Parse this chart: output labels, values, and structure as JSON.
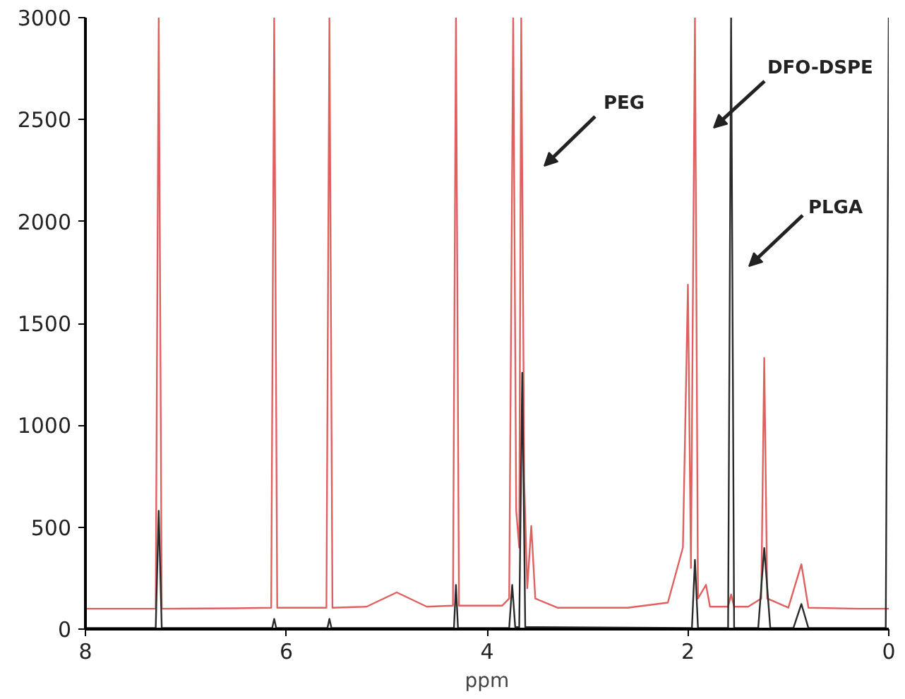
{
  "chart_data": {
    "type": "line",
    "xlabel": "ppm",
    "xlim": [
      8,
      0
    ],
    "xticks": [
      8,
      6,
      4,
      2,
      0
    ],
    "ylim": [
      0,
      3000
    ],
    "yticks": [
      0,
      500,
      1000,
      1500,
      2000,
      2500,
      3000
    ],
    "grid": false,
    "marker": "none",
    "line_style": "solid",
    "series": [
      {
        "color": "#e06060",
        "x": [
          8.0,
          7.3,
          7.27,
          7.24,
          6.5,
          6.15,
          6.12,
          6.09,
          5.6,
          5.57,
          5.54,
          5.2,
          4.9,
          4.6,
          4.34,
          4.31,
          4.28,
          3.85,
          3.78,
          3.74,
          3.71,
          3.68,
          3.66,
          3.63,
          3.6,
          3.56,
          3.52,
          3.3,
          2.6,
          2.2,
          2.05,
          2.0,
          1.97,
          1.93,
          1.9,
          1.82,
          1.78,
          1.6,
          1.57,
          1.54,
          1.4,
          1.27,
          1.24,
          1.21,
          1.0,
          0.87,
          0.8,
          0.3,
          0.0
        ],
        "values": [
          100,
          100,
          3000,
          100,
          102,
          105,
          3000,
          105,
          105,
          3000,
          105,
          110,
          180,
          110,
          115,
          3000,
          115,
          115,
          150,
          3000,
          580,
          400,
          3000,
          723,
          200,
          506,
          150,
          105,
          105,
          130,
          400,
          1690,
          300,
          3000,
          150,
          217,
          110,
          110,
          170,
          110,
          110,
          150,
          1330,
          150,
          105,
          318,
          105,
          100,
          100
        ]
      },
      {
        "color": "#2a2a2a",
        "x": [
          8.0,
          7.3,
          7.27,
          7.24,
          6.14,
          6.12,
          6.1,
          5.59,
          5.57,
          5.55,
          4.33,
          4.31,
          4.29,
          3.78,
          3.75,
          3.72,
          3.68,
          3.65,
          3.62,
          1.96,
          1.93,
          1.9,
          1.6,
          1.57,
          1.54,
          1.3,
          1.24,
          1.18,
          0.95,
          0.87,
          0.8,
          0.03,
          0.0
        ],
        "values": [
          5,
          5,
          580,
          5,
          5,
          50,
          5,
          5,
          50,
          5,
          5,
          217,
          5,
          5,
          217,
          10,
          10,
          1258,
          10,
          5,
          340,
          5,
          5,
          3000,
          5,
          5,
          398,
          5,
          5,
          123,
          5,
          5,
          3000
        ]
      }
    ],
    "annotations": [
      "PEG",
      "DFO-DSPE",
      "PLGA"
    ]
  }
}
